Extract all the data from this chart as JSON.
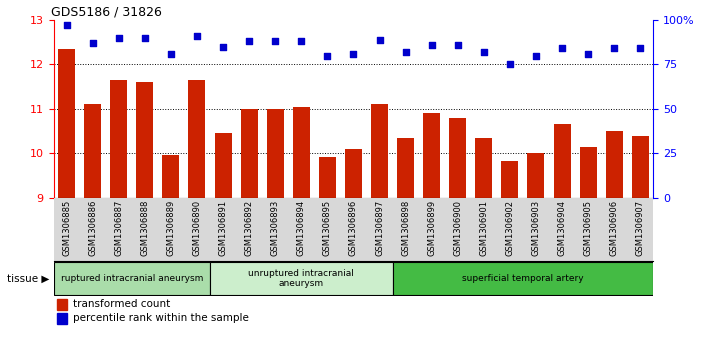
{
  "title": "GDS5186 / 31826",
  "samples": [
    "GSM1306885",
    "GSM1306886",
    "GSM1306887",
    "GSM1306888",
    "GSM1306889",
    "GSM1306890",
    "GSM1306891",
    "GSM1306892",
    "GSM1306893",
    "GSM1306894",
    "GSM1306895",
    "GSM1306896",
    "GSM1306897",
    "GSM1306898",
    "GSM1306899",
    "GSM1306900",
    "GSM1306901",
    "GSM1306902",
    "GSM1306903",
    "GSM1306904",
    "GSM1306905",
    "GSM1306906",
    "GSM1306907"
  ],
  "transformed_count": [
    12.35,
    11.1,
    11.65,
    11.6,
    9.97,
    11.65,
    10.45,
    11.0,
    11.0,
    11.05,
    9.92,
    10.1,
    11.1,
    10.35,
    10.9,
    10.8,
    10.35,
    9.82,
    10.0,
    10.65,
    10.15,
    10.5,
    10.4
  ],
  "percentile_rank": [
    97,
    87,
    90,
    90,
    81,
    91,
    85,
    88,
    88,
    88,
    80,
    81,
    89,
    82,
    86,
    86,
    82,
    75,
    80,
    84,
    81,
    84,
    84
  ],
  "groups": [
    {
      "label": "ruptured intracranial aneurysm",
      "start": 0,
      "end": 6,
      "color": "#aaddaa"
    },
    {
      "label": "unruptured intracranial\naneurysm",
      "start": 6,
      "end": 13,
      "color": "#cceecc"
    },
    {
      "label": "superficial temporal artery",
      "start": 13,
      "end": 23,
      "color": "#44bb44"
    }
  ],
  "bar_color": "#cc2200",
  "dot_color": "#0000cc",
  "ymin": 9,
  "ymax": 13,
  "y2min": 0,
  "y2max": 100,
  "yticks": [
    9,
    10,
    11,
    12,
    13
  ],
  "y2ticks": [
    0,
    25,
    50,
    75,
    100
  ],
  "dotted_lines": [
    10,
    11,
    12
  ],
  "legend_bar_label": "transformed count",
  "legend_dot_label": "percentile rank within the sample",
  "tissue_label": "tissue",
  "xtick_bg": "#d8d8d8"
}
